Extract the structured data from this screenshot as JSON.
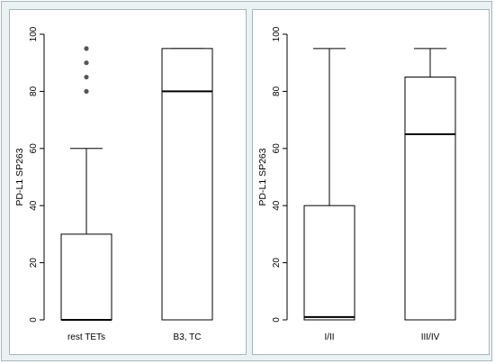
{
  "chart_data": [
    {
      "type": "box",
      "ylabel": "PD-L1 SP263",
      "ylim": [
        0,
        100
      ],
      "yticks": [
        0,
        20,
        40,
        60,
        80,
        100
      ],
      "categories": [
        "rest TETs",
        "B3, TC"
      ],
      "boxes": [
        {
          "category": "rest TETs",
          "whisker_low": 0,
          "q1": 0,
          "median": 0,
          "q3": 30,
          "whisker_high": 60,
          "outliers": [
            80,
            85,
            90,
            95
          ]
        },
        {
          "category": "B3, TC",
          "whisker_low": 0,
          "q1": 0,
          "median": 80,
          "q3": 95,
          "whisker_high": 95,
          "outliers": []
        }
      ],
      "grid": false,
      "colors": {
        "box": "#000000",
        "outlier": "#555555"
      }
    },
    {
      "type": "box",
      "ylabel": "PD-L1 SP263",
      "ylim": [
        0,
        100
      ],
      "yticks": [
        0,
        20,
        40,
        60,
        80,
        100
      ],
      "categories": [
        "I/II",
        "III/IV"
      ],
      "boxes": [
        {
          "category": "I/II",
          "whisker_low": 0,
          "q1": 0,
          "median": 1,
          "q3": 40,
          "whisker_high": 95,
          "outliers": []
        },
        {
          "category": "III/IV",
          "whisker_low": 0,
          "q1": 0,
          "median": 65,
          "q3": 85,
          "whisker_high": 95,
          "outliers": []
        }
      ],
      "grid": false,
      "colors": {
        "box": "#000000",
        "outlier": "#555555"
      }
    }
  ]
}
